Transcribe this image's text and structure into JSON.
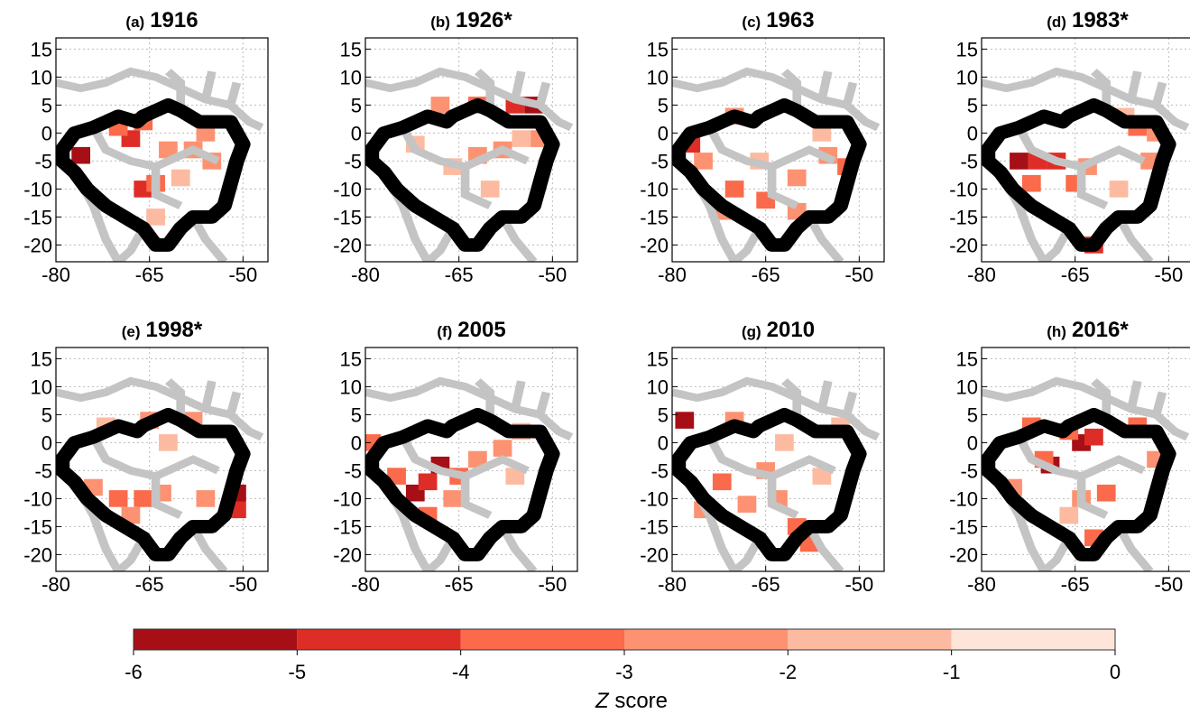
{
  "axes": {
    "xlim": [
      -80,
      -46
    ],
    "ylim": [
      -23,
      17
    ],
    "xticks": [
      -80,
      -65,
      -50
    ],
    "yticks": [
      15,
      10,
      5,
      0,
      -5,
      -10,
      -15,
      -20
    ]
  },
  "panels": [
    {
      "label": "(a)",
      "year": "1916",
      "cells": [
        [
          -66,
          -10,
          -4.5
        ],
        [
          -64,
          -9,
          -3.5
        ],
        [
          -58,
          -3,
          -2.5
        ],
        [
          -55,
          -5,
          -2.5
        ],
        [
          -68,
          -1,
          -4.5
        ],
        [
          -70,
          1,
          -3.5
        ],
        [
          -62,
          -3,
          -2.5
        ],
        [
          -64,
          -15,
          -1.5
        ],
        [
          -76,
          -4,
          -5.5
        ],
        [
          -60,
          -8,
          -1.5
        ],
        [
          -66,
          2,
          -3.5
        ],
        [
          -56,
          0,
          -2.5
        ]
      ]
    },
    {
      "label": "(b)",
      "year": "1926*",
      "cells": [
        [
          -53,
          5,
          -5.5
        ],
        [
          -56,
          5,
          -4.5
        ],
        [
          -62,
          5,
          -3.5
        ],
        [
          -68,
          5,
          -2.5
        ],
        [
          -62,
          -4,
          -2.5
        ],
        [
          -58,
          -3,
          -2.5
        ],
        [
          -55,
          -1,
          -1.5
        ],
        [
          -66,
          -6,
          -1.5
        ],
        [
          -72,
          -2,
          -1.5
        ],
        [
          -60,
          -10,
          -1.5
        ],
        [
          -52,
          -1,
          -2.5
        ]
      ]
    },
    {
      "label": "(c)",
      "year": "1963",
      "cells": [
        [
          -77,
          -2,
          -4.5
        ],
        [
          -75,
          -5,
          -2.5
        ],
        [
          -70,
          -10,
          -3.5
        ],
        [
          -65,
          -12,
          -3.5
        ],
        [
          -60,
          -8,
          -2.5
        ],
        [
          -55,
          -4,
          -2.5
        ],
        [
          -52,
          -6,
          -3.5
        ],
        [
          -66,
          -5,
          -1.5
        ],
        [
          -60,
          -14,
          -2.5
        ],
        [
          -70,
          3,
          -2.5
        ],
        [
          -72,
          -14,
          -2.5
        ],
        [
          -56,
          0,
          -1.5
        ]
      ]
    },
    {
      "label": "(d)",
      "year": "1983*",
      "cells": [
        [
          -74,
          -5,
          -5.5
        ],
        [
          -71,
          -5,
          -4.5
        ],
        [
          -68,
          -5,
          -4.5
        ],
        [
          -72,
          -9,
          -3.5
        ],
        [
          -65,
          -9,
          -3.5
        ],
        [
          -63,
          -6,
          -2.5
        ],
        [
          -55,
          1,
          -3.5
        ],
        [
          -52,
          0,
          -2.5
        ],
        [
          -57,
          3,
          -1.5
        ],
        [
          -53,
          -5,
          -2.5
        ],
        [
          -62,
          -20,
          -4.5
        ],
        [
          -58,
          -10,
          -1.5
        ]
      ]
    },
    {
      "label": "(e)",
      "year": "1998*",
      "cells": [
        [
          -70,
          -10,
          -3.5
        ],
        [
          -66,
          -10,
          -3.5
        ],
        [
          -63,
          -9,
          -2.5
        ],
        [
          -74,
          -8,
          -2.5
        ],
        [
          -68,
          -13,
          -2.5
        ],
        [
          -58,
          4,
          -2.5
        ],
        [
          -65,
          4,
          -2.5
        ],
        [
          -72,
          3,
          -1.5
        ],
        [
          -51,
          -9,
          -5.5
        ],
        [
          -51,
          -12,
          -4.5
        ],
        [
          -56,
          -10,
          -2.5
        ],
        [
          -62,
          0,
          -1.5
        ]
      ]
    },
    {
      "label": "(f)",
      "year": "2005",
      "cells": [
        [
          -68,
          -4,
          -5.5
        ],
        [
          -72,
          -9,
          -5.5
        ],
        [
          -70,
          -7,
          -4.5
        ],
        [
          -75,
          -6,
          -3.5
        ],
        [
          -65,
          -6,
          -3.5
        ],
        [
          -70,
          -13,
          -3.5
        ],
        [
          -62,
          -3,
          -2.5
        ],
        [
          -58,
          -1,
          -2.5
        ],
        [
          -79,
          0,
          -3.5
        ],
        [
          -66,
          -10,
          -2.5
        ],
        [
          -55,
          2,
          -1.5
        ],
        [
          -56,
          -6,
          -1.5
        ]
      ]
    },
    {
      "label": "(g)",
      "year": "2010",
      "cells": [
        [
          -78,
          4,
          -5.5
        ],
        [
          -72,
          -7,
          -3.5
        ],
        [
          -68,
          -11,
          -2.5
        ],
        [
          -63,
          -10,
          -2.5
        ],
        [
          -60,
          -15,
          -3.5
        ],
        [
          -58,
          -18,
          -3.5
        ],
        [
          -65,
          -5,
          -2.5
        ],
        [
          -56,
          -6,
          -1.5
        ],
        [
          -75,
          -12,
          -2.5
        ],
        [
          -62,
          0,
          -1.5
        ],
        [
          -70,
          4,
          -2.5
        ],
        [
          -53,
          3,
          -1.5
        ]
      ]
    },
    {
      "label": "(h)",
      "year": "2016*",
      "cells": [
        [
          -64,
          0,
          -5.5
        ],
        [
          -62,
          1,
          -4.5
        ],
        [
          -66,
          2,
          -3.5
        ],
        [
          -69,
          -4,
          -5.5
        ],
        [
          -70,
          -3,
          -3.5
        ],
        [
          -60,
          -9,
          -3.5
        ],
        [
          -64,
          -10,
          -2.5
        ],
        [
          -62,
          -17,
          -3.5
        ],
        [
          -55,
          3,
          -3.5
        ],
        [
          -72,
          3,
          -3.5
        ],
        [
          -75,
          -8,
          -2.5
        ],
        [
          -66,
          -13,
          -1.5
        ],
        [
          -52,
          -3,
          -2.5
        ]
      ]
    }
  ],
  "colorbar": {
    "ticks": [
      -6,
      -5,
      -4,
      -3,
      -2,
      -1,
      0
    ],
    "colors": [
      "#a50f15",
      "#de2d26",
      "#fb6a4a",
      "#fc9272",
      "#fcbba1",
      "#fee5d9"
    ],
    "label_symbol": "Z",
    "label": "score"
  }
}
